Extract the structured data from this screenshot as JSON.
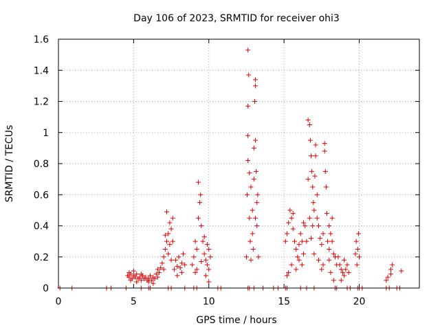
{
  "chart_data": {
    "type": "scatter",
    "title": "Day 106 of 2023, SRMTID for receiver ohi3",
    "xlabel": "GPS time / hours",
    "ylabel": "SRMTID / TECUs",
    "xlim": [
      0,
      24
    ],
    "ylim": [
      0,
      1.6
    ],
    "xticks": [
      "0",
      "5",
      "10",
      "15",
      "20"
    ],
    "yticks": [
      "0",
      "0.2",
      "0.4",
      "0.6",
      "0.8",
      "1",
      "1.2",
      "1.4",
      "1.6"
    ],
    "grid": true,
    "marker": "+",
    "color": "#dd0000",
    "series": [
      {
        "name": "SRMTID",
        "points": [
          [
            0.1,
            0
          ],
          [
            0.9,
            0
          ],
          [
            3.2,
            0
          ],
          [
            3.5,
            0
          ],
          [
            4.5,
            0
          ],
          [
            5.5,
            0
          ],
          [
            6.0,
            0
          ],
          [
            6.1,
            0
          ],
          [
            7.3,
            0
          ],
          [
            7.5,
            0
          ],
          [
            8.4,
            0
          ],
          [
            9.0,
            0
          ],
          [
            9.2,
            0
          ],
          [
            10.6,
            0
          ],
          [
            10.8,
            0
          ],
          [
            12.6,
            0
          ],
          [
            12.7,
            0
          ],
          [
            13.0,
            0
          ],
          [
            13.6,
            0
          ],
          [
            14.3,
            0
          ],
          [
            14.6,
            0
          ],
          [
            15.1,
            0
          ],
          [
            15.2,
            0
          ],
          [
            16.1,
            0
          ],
          [
            16.5,
            0
          ],
          [
            17.0,
            0
          ],
          [
            18.4,
            0
          ],
          [
            18.5,
            0
          ],
          [
            19.2,
            0
          ],
          [
            19.4,
            0
          ],
          [
            19.9,
            0
          ],
          [
            20.0,
            0
          ],
          [
            20.2,
            0
          ],
          [
            21.8,
            0
          ],
          [
            22.0,
            0
          ],
          [
            22.5,
            0
          ],
          [
            22.7,
            0
          ],
          [
            4.6,
            0.08
          ],
          [
            4.7,
            0.07
          ],
          [
            4.8,
            0.09
          ],
          [
            4.9,
            0.06
          ],
          [
            5.0,
            0.08
          ],
          [
            5.1,
            0.07
          ],
          [
            5.2,
            0.09
          ],
          [
            5.3,
            0.06
          ],
          [
            5.4,
            0.07
          ],
          [
            5.5,
            0.05
          ],
          [
            5.6,
            0.08
          ],
          [
            5.7,
            0.06
          ],
          [
            5.8,
            0.07
          ],
          [
            5.9,
            0.05
          ],
          [
            6.0,
            0.06
          ],
          [
            6.1,
            0.08
          ],
          [
            6.2,
            0.05
          ],
          [
            6.3,
            0.07
          ],
          [
            6.4,
            0.06
          ],
          [
            6.5,
            0.09
          ],
          [
            6.6,
            0.07
          ],
          [
            6.7,
            0.1
          ],
          [
            4.7,
            0.1
          ],
          [
            5.0,
            0.11
          ],
          [
            5.5,
            0.09
          ],
          [
            6.0,
            0.04
          ],
          [
            6.3,
            0.03
          ],
          [
            6.6,
            0.12
          ],
          [
            4.8,
            0.05
          ],
          [
            5.2,
            0.04
          ],
          [
            6.8,
            0.13
          ],
          [
            6.9,
            0.16
          ],
          [
            7.0,
            0.2
          ],
          [
            7.1,
            0.25
          ],
          [
            7.2,
            0.3
          ],
          [
            7.3,
            0.35
          ],
          [
            7.4,
            0.42
          ],
          [
            7.5,
            0.38
          ],
          [
            7.6,
            0.3
          ],
          [
            7.2,
            0.49
          ],
          [
            7.3,
            0.22
          ],
          [
            7.5,
            0.18
          ],
          [
            7.0,
            0.12
          ],
          [
            7.4,
            0.28
          ],
          [
            7.6,
            0.45
          ],
          [
            7.1,
            0.34
          ],
          [
            7.7,
            0.12
          ],
          [
            7.8,
            0.18
          ],
          [
            7.9,
            0.14
          ],
          [
            8.0,
            0.2
          ],
          [
            8.1,
            0.13
          ],
          [
            8.2,
            0.16
          ],
          [
            8.3,
            0.22
          ],
          [
            8.4,
            0.15
          ],
          [
            7.9,
            0.08
          ],
          [
            8.2,
            0.1
          ],
          [
            8.9,
            0.15
          ],
          [
            9.0,
            0.2
          ],
          [
            9.1,
            0.3
          ],
          [
            9.2,
            0.25
          ],
          [
            9.3,
            0.45
          ],
          [
            9.4,
            0.55
          ],
          [
            9.5,
            0.4
          ],
          [
            9.6,
            0.3
          ],
          [
            9.7,
            0.22
          ],
          [
            9.8,
            0.18
          ],
          [
            9.9,
            0.15
          ],
          [
            10.0,
            0.12
          ],
          [
            10.1,
            0.2
          ],
          [
            9.3,
            0.68
          ],
          [
            9.45,
            0.6
          ],
          [
            9.2,
            0.12
          ],
          [
            9.7,
            0.33
          ],
          [
            9.9,
            0.28
          ],
          [
            10.0,
            0.25
          ],
          [
            9.1,
            0.1
          ],
          [
            9.5,
            0.17
          ],
          [
            9.8,
            0.08
          ],
          [
            10.0,
            0.04
          ],
          [
            12.5,
            0.2
          ],
          [
            12.55,
            0.6
          ],
          [
            12.6,
            0.82
          ],
          [
            12.6,
            1.17
          ],
          [
            12.65,
            1.37
          ],
          [
            12.6,
            1.53
          ],
          [
            12.6,
            0.98
          ],
          [
            12.7,
            0.74
          ],
          [
            12.7,
            0.45
          ],
          [
            12.75,
            0.3
          ],
          [
            12.8,
            0.18
          ],
          [
            12.9,
            0.5
          ],
          [
            13.0,
            0.7
          ],
          [
            13.0,
            0.9
          ],
          [
            13.05,
            1.2
          ],
          [
            13.1,
            1.3
          ],
          [
            13.1,
            1.34
          ],
          [
            13.1,
            0.95
          ],
          [
            13.15,
            0.75
          ],
          [
            13.2,
            0.55
          ],
          [
            13.2,
            0.4
          ],
          [
            13.3,
            0.2
          ],
          [
            13.25,
            0.6
          ],
          [
            12.9,
            0.35
          ],
          [
            12.95,
            0.25
          ],
          [
            13.1,
            0.45
          ],
          [
            12.8,
            0.65
          ],
          [
            15.1,
            0.3
          ],
          [
            15.2,
            0.35
          ],
          [
            15.3,
            0.42
          ],
          [
            15.4,
            0.5
          ],
          [
            15.5,
            0.45
          ],
          [
            15.6,
            0.38
          ],
          [
            15.7,
            0.3
          ],
          [
            15.8,
            0.25
          ],
          [
            15.9,
            0.2
          ],
          [
            16.0,
            0.28
          ],
          [
            16.1,
            0.35
          ],
          [
            16.2,
            0.3
          ],
          [
            16.3,
            0.22
          ],
          [
            16.4,
            0.4
          ],
          [
            16.5,
            0.3
          ],
          [
            15.3,
            0.1
          ],
          [
            15.5,
            0.15
          ],
          [
            15.8,
            0.12
          ],
          [
            16.0,
            0.18
          ],
          [
            16.2,
            0.15
          ],
          [
            15.2,
            0.08
          ],
          [
            15.6,
            0.48
          ],
          [
            16.3,
            0.42
          ],
          [
            16.6,
            0.7
          ],
          [
            16.6,
            1.08
          ],
          [
            16.7,
            1.05
          ],
          [
            16.75,
            0.95
          ],
          [
            16.8,
            0.85
          ],
          [
            16.85,
            0.75
          ],
          [
            16.9,
            0.65
          ],
          [
            16.95,
            0.55
          ],
          [
            17.0,
            0.5
          ],
          [
            17.05,
            0.72
          ],
          [
            17.1,
            0.85
          ],
          [
            17.1,
            0.92
          ],
          [
            17.2,
            0.6
          ],
          [
            17.3,
            0.4
          ],
          [
            17.4,
            0.32
          ],
          [
            17.5,
            0.28
          ],
          [
            17.6,
            0.35
          ],
          [
            17.7,
            0.93
          ],
          [
            17.7,
            0.88
          ],
          [
            17.75,
            0.75
          ],
          [
            17.8,
            0.65
          ],
          [
            17.85,
            0.48
          ],
          [
            17.9,
            0.3
          ],
          [
            18.0,
            0.25
          ],
          [
            16.7,
            0.45
          ],
          [
            16.8,
            0.32
          ],
          [
            17.0,
            0.22
          ],
          [
            17.3,
            0.18
          ],
          [
            17.6,
            0.15
          ],
          [
            16.9,
            0.4
          ],
          [
            17.2,
            0.45
          ],
          [
            17.5,
            0.12
          ],
          [
            18.0,
            0.4
          ],
          [
            18.1,
            0.35
          ],
          [
            18.2,
            0.3
          ],
          [
            18.3,
            0.22
          ],
          [
            18.4,
            0.2
          ],
          [
            18.5,
            0.15
          ],
          [
            18.1,
            0.1
          ],
          [
            18.3,
            0.05
          ],
          [
            18.0,
            0.18
          ],
          [
            18.2,
            0.45
          ],
          [
            18.6,
            0.2
          ],
          [
            18.7,
            0.15
          ],
          [
            18.8,
            0.12
          ],
          [
            18.9,
            0.1
          ],
          [
            19.0,
            0.08
          ],
          [
            19.1,
            0.12
          ],
          [
            19.2,
            0.15
          ],
          [
            19.3,
            0.1
          ],
          [
            18.8,
            0.05
          ],
          [
            19.0,
            0.18
          ],
          [
            19.8,
            0.3
          ],
          [
            19.9,
            0.25
          ],
          [
            20.0,
            0.2
          ],
          [
            19.85,
            0.15
          ],
          [
            19.95,
            0.35
          ],
          [
            19.75,
            0.22
          ],
          [
            21.8,
            0.05
          ],
          [
            21.9,
            0.07
          ],
          [
            22.1,
            0.12
          ],
          [
            22.2,
            0.15
          ],
          [
            22.1,
            0.09
          ],
          [
            22.8,
            0.11
          ]
        ]
      }
    ]
  }
}
